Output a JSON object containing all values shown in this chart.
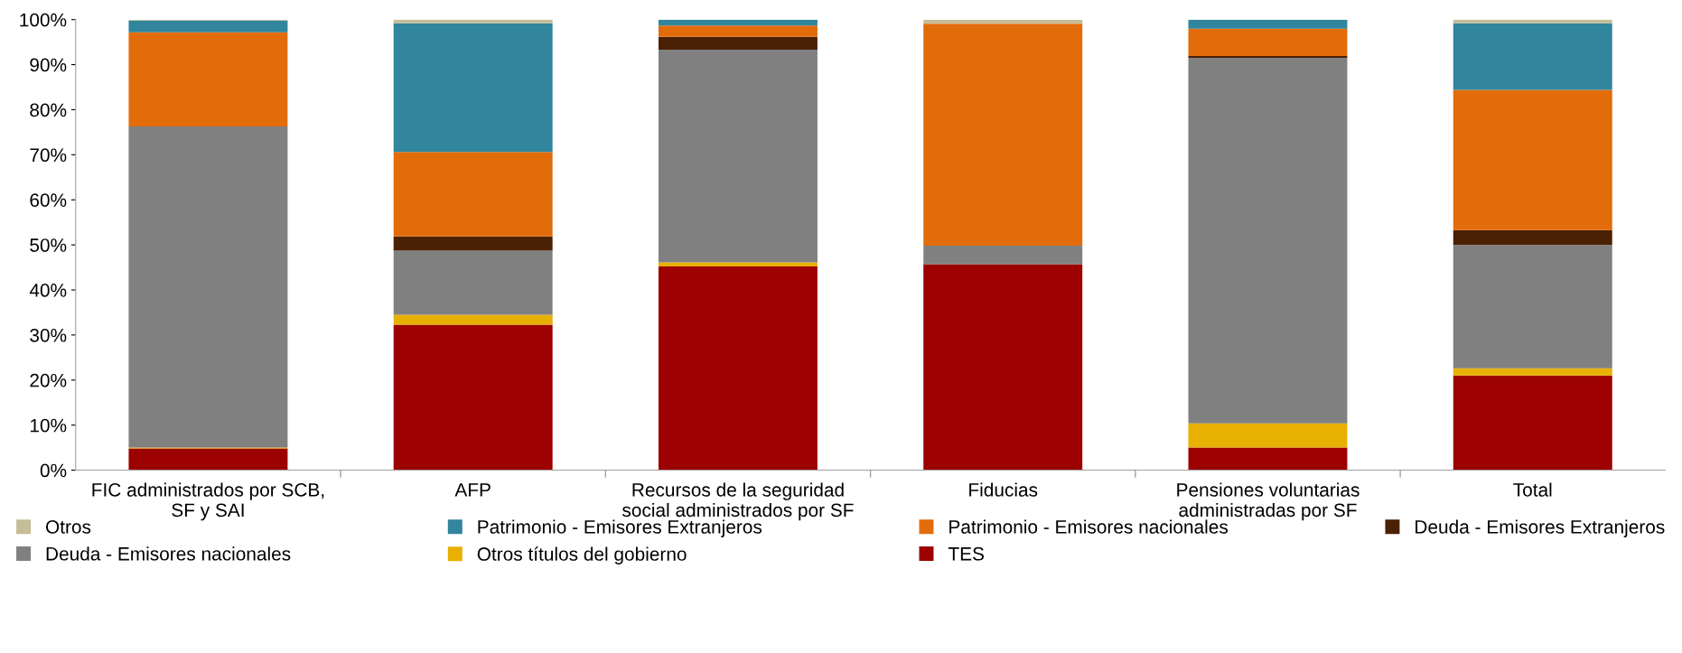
{
  "chart_data": {
    "type": "bar",
    "stacked": true,
    "legend": "bottom",
    "grid": false,
    "categories": [
      "FIC administrados por SCB,\nSF y SAI",
      "AFP",
      "Recursos de la seguridad\nsocial administrados por SF",
      "Fiducias",
      "Pensiones voluntarias\nadministradas por SF",
      "Total"
    ],
    "ylim": [
      0,
      100
    ],
    "yticks": [
      {
        "value": 0,
        "label": "0%"
      },
      {
        "value": 10,
        "label": "10%"
      },
      {
        "value": 20,
        "label": "20%"
      },
      {
        "value": 30,
        "label": "30%"
      },
      {
        "value": 40,
        "label": "40%"
      },
      {
        "value": 50,
        "label": "50%"
      },
      {
        "value": 60,
        "label": "60%"
      },
      {
        "value": 70,
        "label": "70%"
      },
      {
        "value": 80,
        "label": "80%"
      },
      {
        "value": 90,
        "label": "90%"
      },
      {
        "value": 100,
        "label": "100%"
      }
    ],
    "series": [
      {
        "name": "TES",
        "color": "#9c0000",
        "values": [
          4.8,
          32.3,
          45.2,
          45.7,
          5.0,
          21.0
        ]
      },
      {
        "name": "Otros títulos del gobierno",
        "color": "#e8b000",
        "values": [
          0.2,
          2.2,
          0.9,
          0,
          5.4,
          1.6
        ]
      },
      {
        "name": "Deuda - Emisores nacionales",
        "color": "#808080",
        "values": [
          71.3,
          14.2,
          47.2,
          4.1,
          81.1,
          27.4
        ]
      },
      {
        "name": "Deuda - Emisores Extranjeros",
        "color": "#4a2104",
        "values": [
          0,
          3.2,
          2.9,
          0,
          0.4,
          3.3
        ]
      },
      {
        "name": "Patrimonio - Emisores nacionales",
        "color": "#e36c0a",
        "values": [
          20.9,
          18.7,
          2.5,
          49.3,
          6.1,
          31.1
        ]
      },
      {
        "name": "Patrimonio - Emisores Extranjeros",
        "color": "#31859c",
        "values": [
          2.6,
          28.6,
          1.3,
          0,
          2.0,
          14.8
        ]
      },
      {
        "name": "Otros",
        "color": "#c4bd97",
        "values": [
          0.2,
          0.8,
          0,
          0.9,
          0,
          0.8
        ]
      }
    ]
  }
}
